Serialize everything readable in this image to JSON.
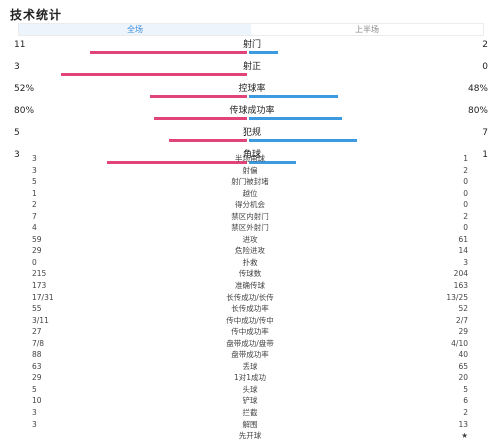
{
  "title": "技术统计",
  "tabs": [
    {
      "label": "全场",
      "active": true
    },
    {
      "label": "上半场",
      "active": false
    }
  ],
  "bar_stats": [
    {
      "label": "射门",
      "home": "11",
      "away": "2",
      "home_share": 0.846,
      "away_share": 0.154
    },
    {
      "label": "射正",
      "home": "3",
      "away": "0",
      "home_share": 1.0,
      "away_share": 0.0
    },
    {
      "label": "控球率",
      "home": "52%",
      "away": "48%",
      "home_share": 0.52,
      "away_share": 0.48
    },
    {
      "label": "传球成功率",
      "home": "80%",
      "away": "80%",
      "home_share": 0.5,
      "away_share": 0.5
    },
    {
      "label": "犯规",
      "home": "5",
      "away": "7",
      "home_share": 0.417,
      "away_share": 0.583
    },
    {
      "label": "角球",
      "home": "3",
      "away": "1",
      "home_share": 0.75,
      "away_share": 0.25
    }
  ],
  "list_stats": [
    {
      "label": "半场角球",
      "home": "3",
      "away": "1"
    },
    {
      "label": "射偏",
      "home": "3",
      "away": "2"
    },
    {
      "label": "射门被封堵",
      "home": "5",
      "away": "0"
    },
    {
      "label": "越位",
      "home": "1",
      "away": "0"
    },
    {
      "label": "得分机会",
      "home": "2",
      "away": "0"
    },
    {
      "label": "禁区内射门",
      "home": "7",
      "away": "2"
    },
    {
      "label": "禁区外射门",
      "home": "4",
      "away": "0"
    },
    {
      "label": "进攻",
      "home": "59",
      "away": "61"
    },
    {
      "label": "危险进攻",
      "home": "29",
      "away": "14"
    },
    {
      "label": "扑救",
      "home": "0",
      "away": "3"
    },
    {
      "label": "传球数",
      "home": "215",
      "away": "204"
    },
    {
      "label": "准确传球",
      "home": "173",
      "away": "163"
    },
    {
      "label": "长传成功/长传",
      "home": "17/31",
      "away": "13/25"
    },
    {
      "label": "长传成功率",
      "home": "55",
      "away": "52"
    },
    {
      "label": "传中成功/传中",
      "home": "3/11",
      "away": "2/7"
    },
    {
      "label": "传中成功率",
      "home": "27",
      "away": "29"
    },
    {
      "label": "盘带成功/盘带",
      "home": "7/8",
      "away": "4/10"
    },
    {
      "label": "盘带成功率",
      "home": "88",
      "away": "40"
    },
    {
      "label": "丢球",
      "home": "63",
      "away": "65"
    },
    {
      "label": "1对1成功",
      "home": "29",
      "away": "20"
    },
    {
      "label": "头球",
      "home": "5",
      "away": "5"
    },
    {
      "label": "铲球",
      "home": "10",
      "away": "6"
    },
    {
      "label": "拦截",
      "home": "3",
      "away": "2"
    },
    {
      "label": "解围",
      "home": "3",
      "away": "13"
    },
    {
      "label": "先开球",
      "home": "",
      "away": "★"
    }
  ],
  "colors": {
    "home": "#e0447a",
    "away": "#3c9be0",
    "tab_active": "#3c8edc"
  }
}
